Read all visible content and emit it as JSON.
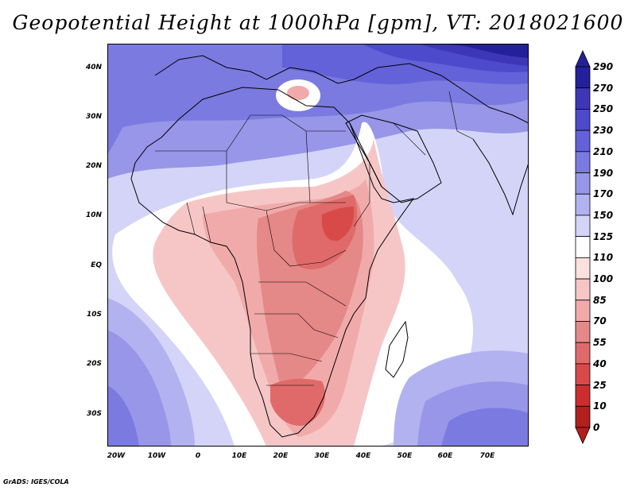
{
  "title": "Geopotential Height at 1000hPa [gpm], VT: 2018021600",
  "credit": "GrADS: IGES/COLA",
  "y_ticks": [
    "40N",
    "30N",
    "20N",
    "10N",
    "EQ",
    "10S",
    "20S",
    "30S"
  ],
  "x_ticks": [
    "20W",
    "10W",
    "0",
    "10E",
    "20E",
    "30E",
    "40E",
    "50E",
    "60E",
    "70E"
  ],
  "legend": {
    "labels": [
      "290",
      "270",
      "250",
      "230",
      "210",
      "190",
      "170",
      "150",
      "125",
      "110",
      "100",
      "85",
      "70",
      "55",
      "40",
      "25",
      "10",
      "0"
    ],
    "colors": [
      "#23209a",
      "#3d37b8",
      "#4d4acc",
      "#6362d9",
      "#7b7ae0",
      "#9796e8",
      "#b3b2f0",
      "#d4d4f8",
      "#ffffff",
      "#fbe0e0",
      "#f6c6c6",
      "#f1aaaa",
      "#e58888",
      "#e06a6a",
      "#d84a4a",
      "#cc2e2e",
      "#b31e1e"
    ]
  },
  "chart_data": {
    "type": "heatmap",
    "title": "Geopotential Height at 1000hPa [gpm], VT: 2018021600",
    "variable": "Geopotential Height at 1000hPa",
    "units": "gpm",
    "valid_time": "2018021600",
    "lon_range": [
      -23,
      80
    ],
    "lat_range": [
      -37,
      45
    ],
    "levels": [
      0,
      10,
      25,
      40,
      55,
      70,
      85,
      100,
      110,
      125,
      150,
      170,
      190,
      210,
      230,
      250,
      270,
      290
    ]
  }
}
